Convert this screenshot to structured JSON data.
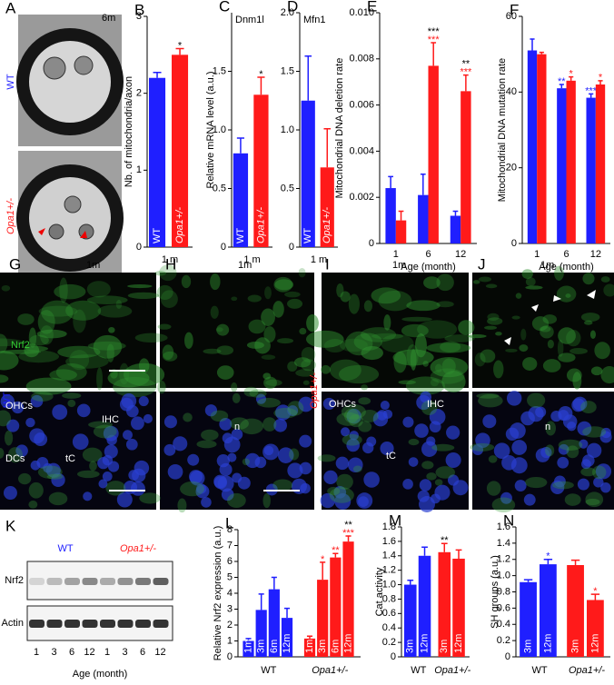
{
  "em": {
    "letter": "A",
    "age": "6m",
    "wt": "WT",
    "mut": "Opa1+/-"
  },
  "micro": {
    "panels": [
      {
        "letter": "G",
        "age": "1m"
      },
      {
        "letter": "H",
        "age": "1m"
      },
      {
        "letter": "I",
        "age": "1m"
      },
      {
        "letter": "J",
        "age": "1m"
      }
    ],
    "stain": "Nrf2",
    "wt": "WT",
    "mut": "Opa1+/-",
    "cells": {
      "G": [
        "OHCs",
        "IHC",
        "DCs",
        "tC"
      ],
      "H": [
        "n"
      ],
      "I": [
        "OHCs",
        "IHC",
        "tC"
      ],
      "J": [
        "n"
      ]
    }
  },
  "blot": {
    "letter": "K",
    "groups": [
      "WT",
      "Opa1+/-"
    ],
    "rows": [
      "Nrf2",
      "Actin"
    ],
    "lanes": [
      "1",
      "3",
      "6",
      "12",
      "1",
      "3",
      "6",
      "12"
    ],
    "xlabel": "Age (month)"
  },
  "chart_data": [
    {
      "type": "bar_groups",
      "panel": "B",
      "ylabel": "Nb. of mitochondria/axon",
      "xlabel": "1 m",
      "ylim": [
        0,
        3
      ],
      "yticks": [
        0,
        1,
        2,
        3
      ],
      "groups": [
        {
          "color": "#1f1fff",
          "bar_labels": [
            "WT"
          ],
          "values": [
            2.2
          ],
          "errors": [
            0.07
          ],
          "annotations": [
            []
          ]
        },
        {
          "color": "#ff1a1a",
          "bar_labels": [
            "Opa1+/-"
          ],
          "values": [
            2.5
          ],
          "errors": [
            0.08
          ],
          "annotations": [
            [
              {
                "text": "*",
                "color": "#000000"
              }
            ]
          ]
        }
      ]
    },
    {
      "type": "bar_groups",
      "panel": "C",
      "title": "Dnm1l",
      "ylabel": "Relative  mRNA level (a.u.)",
      "xlabel": "1 m",
      "ylim": [
        0,
        2
      ],
      "yticks": [
        0,
        0.5,
        {
          "value": 1,
          "label": "1.0"
        },
        1.5
      ],
      "groups": [
        {
          "color": "#1f1fff",
          "bar_labels": [
            "WT"
          ],
          "values": [
            0.8
          ],
          "errors": [
            0.13
          ],
          "annotations": [
            []
          ]
        },
        {
          "color": "#ff1a1a",
          "bar_labels": [
            "Opa1+/-"
          ],
          "values": [
            1.3
          ],
          "errors": [
            0.15
          ],
          "annotations": [
            [
              {
                "text": "*",
                "color": "#000000"
              }
            ]
          ]
        }
      ]
    },
    {
      "type": "bar_groups",
      "panel": "D",
      "title": "Mfn1",
      "xlabel": "1 m",
      "ylim": [
        0,
        2
      ],
      "yticks": [
        0,
        0.5,
        {
          "value": 1,
          "label": "1.0"
        },
        1.5,
        {
          "value": 2,
          "label": "2.0"
        }
      ],
      "groups": [
        {
          "color": "#1f1fff",
          "bar_labels": [
            "WT"
          ],
          "values": [
            1.25
          ],
          "errors": [
            0.38
          ],
          "annotations": [
            []
          ]
        },
        {
          "color": "#ff1a1a",
          "bar_labels": [
            "Opa1+/-"
          ],
          "values": [
            0.68
          ],
          "errors": [
            0.33
          ],
          "annotations": [
            []
          ]
        }
      ]
    },
    {
      "type": "bar",
      "panel": "E",
      "ylabel": "Mitochondrial DNA deletion rate",
      "xlabel": "Age (month)",
      "categories": [
        "1",
        "6",
        "12"
      ],
      "ylim": [
        0,
        0.01
      ],
      "yticks": [
        0,
        0.002,
        0.004,
        0.006,
        0.008,
        {
          "value": 0.01,
          "label": "0.010"
        }
      ],
      "series": [
        {
          "color": "#1f1fff",
          "values": [
            0.0024,
            0.0021,
            0.0012
          ],
          "errors": [
            0.0005,
            0.0009,
            0.0002
          ],
          "annotations": [
            [],
            [],
            []
          ]
        },
        {
          "color": "#ff1a1a",
          "values": [
            0.001,
            0.0077,
            0.0066
          ],
          "errors": [
            0.0004,
            0.001,
            0.0007
          ],
          "annotations": [
            [],
            [
              {
                "text": "***",
                "color": "#000000"
              },
              {
                "text": "***",
                "color": "#ff1a1a"
              }
            ],
            [
              {
                "text": "**",
                "color": "#000000"
              },
              {
                "text": "***",
                "color": "#ff1a1a"
              }
            ]
          ]
        }
      ]
    },
    {
      "type": "bar",
      "panel": "F",
      "ylabel": "Mitochondrial DNA mutation rate",
      "xlabel": "Age (month)",
      "categories": [
        "1",
        "6",
        "12"
      ],
      "ylim": [
        0,
        60
      ],
      "yticks": [
        0,
        20,
        40,
        60
      ],
      "series": [
        {
          "color": "#1f1fff",
          "values": [
            51,
            41,
            38.5
          ],
          "errors": [
            3,
            1,
            1
          ],
          "annotations": [
            [],
            [
              {
                "text": "**",
                "color": "#1f1fff"
              }
            ],
            [
              {
                "text": "***",
                "color": "#1f1fff"
              }
            ]
          ]
        },
        {
          "color": "#ff1a1a",
          "values": [
            50,
            43,
            42
          ],
          "errors": [
            0.5,
            1,
            1
          ],
          "annotations": [
            [],
            [
              {
                "text": "*",
                "color": "#ff1a1a"
              }
            ],
            [
              {
                "text": "*",
                "color": "#ff1a1a"
              }
            ]
          ]
        }
      ]
    },
    {
      "type": "bar_groups",
      "panel": "L",
      "ylabel": "Relative Nrf2 expression (a.u.)",
      "ylim": [
        0,
        8
      ],
      "yticks": [
        0,
        1,
        2,
        3,
        4,
        5,
        6,
        7,
        8
      ],
      "groups": [
        {
          "name": "WT",
          "color": "#1f1fff",
          "bar_labels": [
            "1m",
            "3m",
            "6m",
            "12m"
          ],
          "values": [
            1.0,
            2.95,
            4.25,
            2.45
          ],
          "errors": [
            0.15,
            1.0,
            0.75,
            0.6
          ],
          "annotations": [
            [],
            [],
            [],
            []
          ]
        },
        {
          "name": "Opa1+/-",
          "color": "#ff1a1a",
          "bar_labels": [
            "1m",
            "3m",
            "6m",
            "12m"
          ],
          "values": [
            1.15,
            4.85,
            6.25,
            7.25
          ],
          "errors": [
            0.15,
            1.1,
            0.25,
            0.35
          ],
          "annotations": [
            [],
            [
              {
                "text": "*",
                "color": "#ff1a1a"
              }
            ],
            [
              {
                "text": "**",
                "color": "#ff1a1a"
              }
            ],
            [
              {
                "text": "**",
                "color": "#000000"
              },
              {
                "text": "***",
                "color": "#ff1a1a"
              }
            ]
          ]
        }
      ]
    },
    {
      "type": "bar_groups",
      "panel": "M",
      "ylabel": "Cat activity",
      "ylim": [
        0,
        1.8
      ],
      "yticks": [
        0,
        0.2,
        0.4,
        0.6,
        0.8,
        {
          "value": 1,
          "label": "1.0"
        },
        1.2,
        1.4,
        1.6,
        1.8
      ],
      "groups": [
        {
          "name": "WT",
          "color": "#1f1fff",
          "bar_labels": [
            "3m",
            "12m"
          ],
          "values": [
            1.0,
            1.4
          ],
          "errors": [
            0.06,
            0.12
          ],
          "annotations": [
            [],
            []
          ]
        },
        {
          "name": "Opa1+/-",
          "color": "#ff1a1a",
          "bar_labels": [
            "3m",
            "12m"
          ],
          "values": [
            1.45,
            1.36
          ],
          "errors": [
            0.12,
            0.12
          ],
          "annotations": [
            [
              {
                "text": "**",
                "color": "#000000"
              }
            ],
            []
          ]
        }
      ]
    },
    {
      "type": "bar_groups",
      "panel": "N",
      "ylabel": "SH groups (a.u.)",
      "ylim": [
        0,
        1.6
      ],
      "yticks": [
        0,
        0.2,
        0.4,
        0.6,
        0.8,
        {
          "value": 1,
          "label": "1.0"
        },
        1.2,
        1.4,
        1.6
      ],
      "groups": [
        {
          "name": "WT",
          "color": "#1f1fff",
          "bar_labels": [
            "3m",
            "12m"
          ],
          "values": [
            0.92,
            1.14
          ],
          "errors": [
            0.03,
            0.06
          ],
          "annotations": [
            [],
            [
              {
                "text": "*",
                "color": "#1f1fff"
              }
            ]
          ]
        },
        {
          "name": "Opa1+/-",
          "color": "#ff1a1a",
          "bar_labels": [
            "3m",
            "12m"
          ],
          "values": [
            1.13,
            0.7
          ],
          "errors": [
            0.06,
            0.07
          ],
          "annotations": [
            [],
            [
              {
                "text": "*",
                "color": "#ff1a1a"
              }
            ]
          ]
        }
      ]
    }
  ]
}
